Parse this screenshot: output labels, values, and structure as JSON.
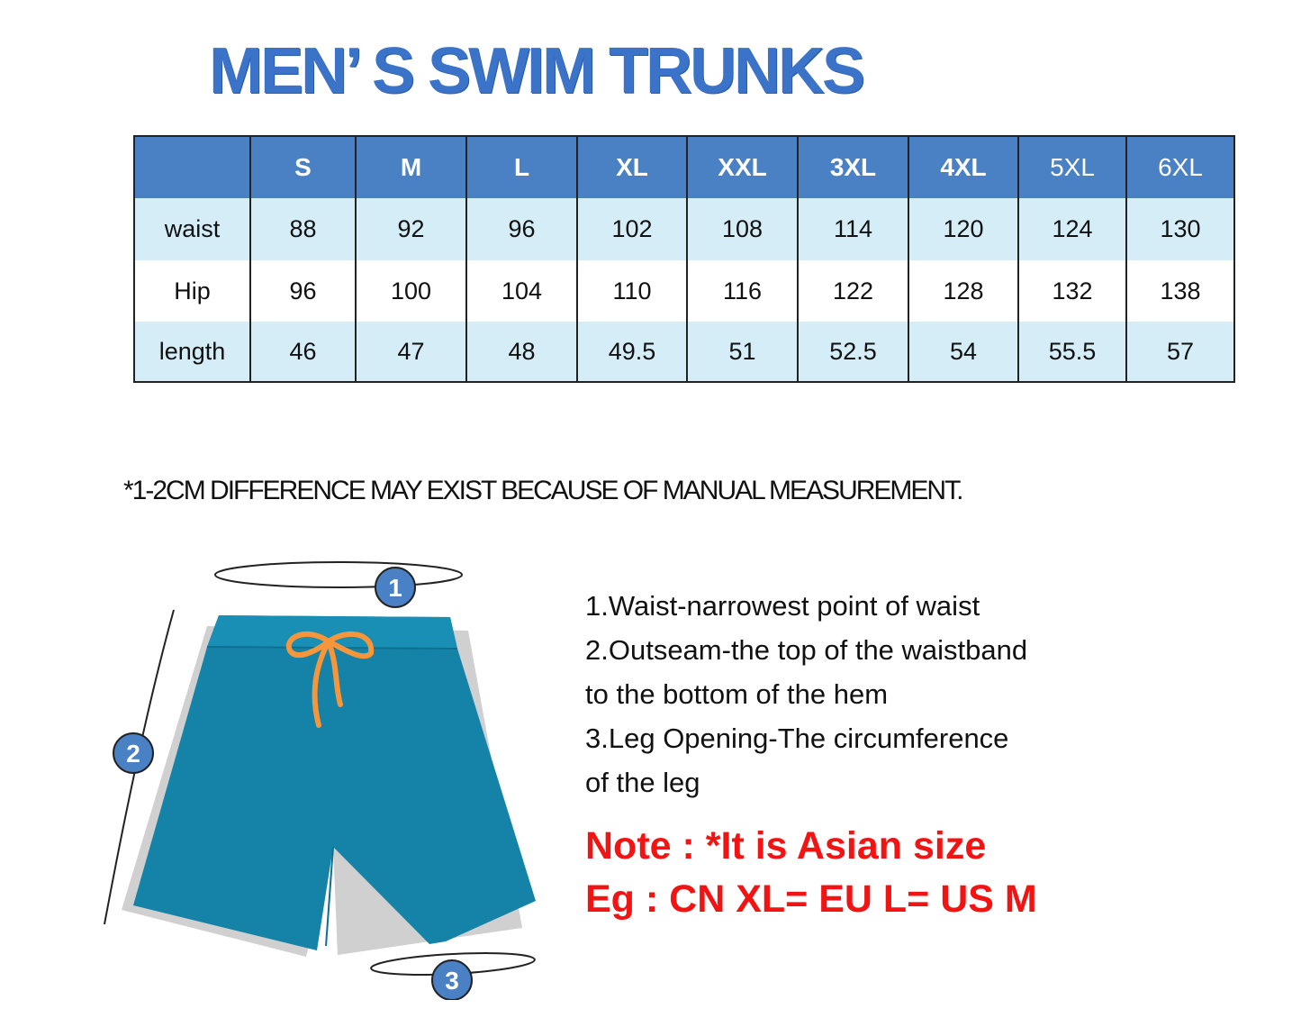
{
  "title": "MEN’ S SWIM TRUNKS",
  "size_table": {
    "headers": [
      "",
      "S",
      "M",
      "L",
      "XL",
      "XXL",
      "3XL",
      "4XL",
      "5XL",
      "6XL"
    ],
    "rows": [
      {
        "label": "waist",
        "values": [
          "88",
          "92",
          "96",
          "102",
          "108",
          "114",
          "120",
          "124",
          "130"
        ]
      },
      {
        "label": "Hip",
        "values": [
          "96",
          "100",
          "104",
          "110",
          "116",
          "122",
          "128",
          "132",
          "138"
        ]
      },
      {
        "label": "length",
        "values": [
          "46",
          "47",
          "48",
          "49.5",
          "51",
          "52.5",
          "54",
          "55.5",
          "57"
        ]
      }
    ]
  },
  "disclaimer": "*1-2CM DIFFERENCE MAY EXIST BECAUSE OF MANUAL MEASUREMENT.",
  "diagram": {
    "markers": [
      "1",
      "2",
      "3"
    ],
    "shorts_color": "#1583a8",
    "drawstring_color": "#f7953a",
    "marker_color": "#4a80c4"
  },
  "description": [
    "1.Waist-narrowest point of waist",
    "2.Outseam-the top of the waistband",
    "to the bottom of the hem",
    "3.Leg Opening-The circumference",
    "of the leg"
  ],
  "note": {
    "line1": "Note : *It is Asian size",
    "line2": "Eg : CN XL= EU L= US M",
    "color": "#f21313"
  }
}
